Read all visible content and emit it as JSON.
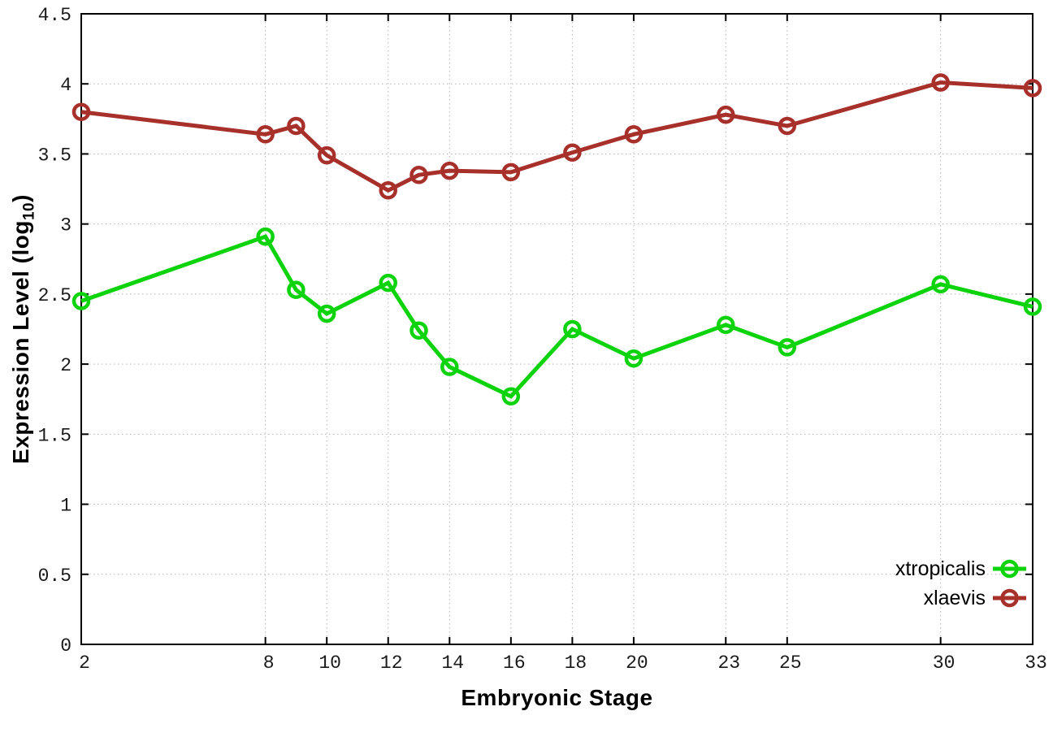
{
  "chart_data": {
    "type": "line",
    "x": [
      2,
      8,
      9,
      10,
      12,
      13,
      14,
      16,
      18,
      20,
      23,
      25,
      30,
      33
    ],
    "series": [
      {
        "name": "xtropicalis",
        "color": "#0dd30d",
        "values": [
          2.45,
          2.91,
          2.53,
          2.36,
          2.58,
          2.24,
          1.98,
          1.77,
          2.25,
          2.04,
          2.28,
          2.12,
          2.57,
          2.41
        ]
      },
      {
        "name": "xlaevis",
        "color": "#a8302a",
        "values": [
          3.8,
          3.64,
          3.7,
          3.49,
          3.24,
          3.35,
          3.38,
          3.37,
          3.51,
          3.64,
          3.78,
          3.7,
          4.01,
          3.97
        ]
      }
    ],
    "title": "",
    "xlabel": "Embryonic Stage",
    "ylabel": "Expression Level (log10)",
    "ylabel_prefix": "Expression Level (log",
    "ylabel_sub": "10",
    "ylabel_suffix": ")",
    "xticks": [
      2,
      8,
      10,
      12,
      14,
      16,
      18,
      20,
      23,
      25,
      30,
      33
    ],
    "yticks": [
      0,
      0.5,
      1,
      1.5,
      2,
      2.5,
      3,
      3.5,
      4,
      4.5
    ],
    "xlim": [
      2,
      33
    ],
    "ylim": [
      0,
      4.5
    ],
    "grid": true,
    "grid_style": "dotted",
    "legend_position": "inside-bottom-right",
    "marker": "open-circle",
    "colors": {
      "axis": "#000000",
      "grid": "#b3b3b3",
      "tick_text": "#1a1a1a",
      "background": "#ffffff"
    }
  }
}
